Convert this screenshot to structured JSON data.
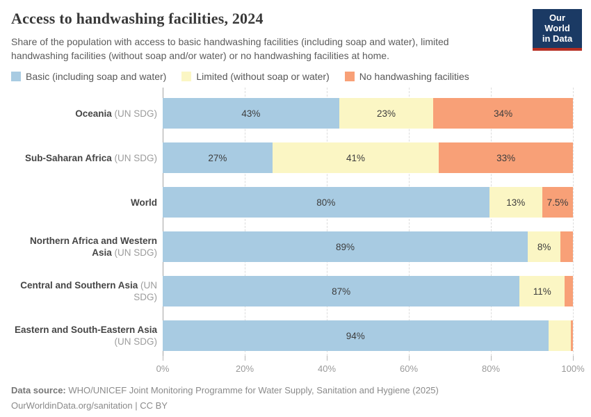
{
  "header": {
    "title": "Access to handwashing facilities, 2024",
    "subtitle": "Share of the population with access to basic handwashing facilities (including soap and water), limited handwashing facilities (without soap and/or water) or no handwashing facilities at home.",
    "logo": {
      "line1": "Our World",
      "line2": "in Data",
      "bg_color": "#1b3a64",
      "bar_color": "#b62e22"
    }
  },
  "chart_data": {
    "type": "bar",
    "orientation": "horizontal",
    "stacked": true,
    "unit": "%",
    "xlim": [
      0,
      100
    ],
    "x_tick_labels": [
      "0%",
      "20%",
      "40%",
      "60%",
      "80%",
      "100%"
    ],
    "grid": "vertical-dashed",
    "legend_position": "top",
    "series": [
      {
        "name": "Basic (including soap and water)",
        "color": "#a8cbe2"
      },
      {
        "name": "Limited (without soap or water)",
        "color": "#fbf6c4"
      },
      {
        "name": "No handwashing facilities",
        "color": "#f8a077"
      }
    ],
    "rows": [
      {
        "name": "Oceania",
        "suffix": " (UN SDG)",
        "values": [
          43,
          23,
          34
        ],
        "labels": [
          "43%",
          "23%",
          "34%"
        ]
      },
      {
        "name": "Sub-Saharan Africa",
        "suffix": " (UN SDG)",
        "values": [
          27,
          41,
          33
        ],
        "labels": [
          "27%",
          "41%",
          "33%"
        ]
      },
      {
        "name": "World",
        "suffix": "",
        "values": [
          80,
          13,
          7.5
        ],
        "labels": [
          "80%",
          "13%",
          "7.5%"
        ]
      },
      {
        "name": "Northern Africa and Western Asia",
        "suffix": " (UN SDG)",
        "values": [
          89,
          8,
          3
        ],
        "labels": [
          "89%",
          "8%",
          ""
        ]
      },
      {
        "name": "Central and Southern Asia",
        "suffix": " (UN SDG)",
        "values": [
          87,
          11,
          2
        ],
        "labels": [
          "87%",
          "11%",
          ""
        ]
      },
      {
        "name": "Eastern and South-Eastern Asia",
        "suffix": " (UN SDG)",
        "values": [
          94,
          5.5,
          0.5
        ],
        "labels": [
          "94%",
          "",
          ""
        ]
      }
    ]
  },
  "footer": {
    "source_label": "Data source:",
    "source_text": " WHO/UNICEF Joint Monitoring Programme for Water Supply, Sanitation and Hygiene (2025)",
    "license_text": "OurWorldinData.org/sanitation | CC BY"
  }
}
